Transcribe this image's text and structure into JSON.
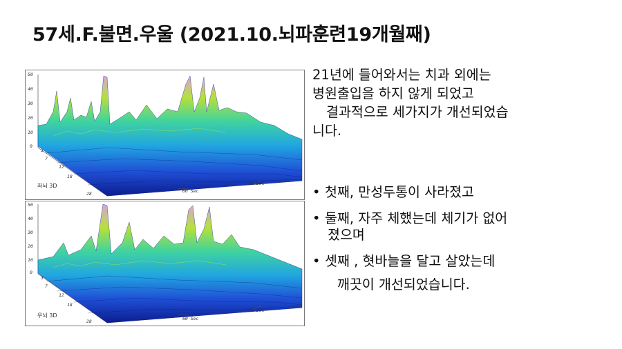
{
  "title": "57세.F.불면.우울 (2021.10.뇌파훈련19개월째)",
  "panels": [
    {
      "label": "좌뇌 3D",
      "y_ticks": [
        "50",
        "40",
        "30",
        "20",
        "10",
        "0"
      ],
      "depth_ticks": [
        "3",
        "7",
        "12",
        "18",
        "28"
      ],
      "time_ticks": [
        "60 Sec",
        "30 Sec"
      ]
    },
    {
      "label": "우뇌 3D",
      "y_ticks": [
        "50",
        "40",
        "30",
        "20",
        "10",
        "0"
      ],
      "depth_ticks": [
        "3",
        "7",
        "12",
        "18",
        "28"
      ],
      "time_ticks": [
        "60 Sec",
        "30 Sec"
      ]
    }
  ],
  "text": {
    "line1": "21년에 들어와서는 치과 외에는",
    "line2": "병원출입을 하지 않게 되었고",
    "line3": "결과적으로 세가지가 개선되었습",
    "line4": "니다."
  },
  "bullets": [
    {
      "marker": "•",
      "lines": [
        "첫째, 만성두통이 사라졌고"
      ]
    },
    {
      "marker": "•",
      "lines": [
        "둘째, 자주 체했는데 체기가 없어",
        "졌으며"
      ]
    },
    {
      "marker": "•",
      "lines": [
        "셋째 , 혓바늘을 달고 살았는데",
        "깨끗이 개선되었습니다."
      ]
    }
  ]
}
